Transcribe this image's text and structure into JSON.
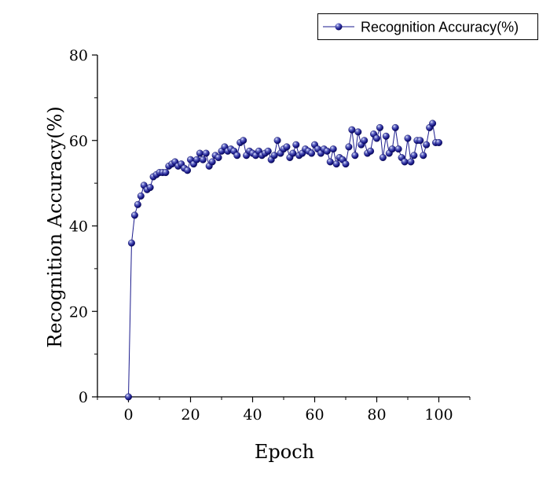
{
  "chart_data": {
    "type": "line",
    "xlabel": "Epoch",
    "ylabel": "Recognition Accuracy(%)",
    "xlim": [
      -10,
      110
    ],
    "ylim": [
      0,
      80
    ],
    "x_ticks": [
      "0",
      "20",
      "40",
      "60",
      "80",
      "100"
    ],
    "y_ticks": [
      "0",
      "20",
      "40",
      "60",
      "80"
    ],
    "legend_position": "top-right",
    "grid": false,
    "series": [
      {
        "name": "Recognition Accuracy(%)",
        "color": "#1a1a8c",
        "marker": "sphere",
        "x": [
          0,
          1,
          2,
          3,
          4,
          5,
          6,
          7,
          8,
          9,
          10,
          11,
          12,
          13,
          14,
          15,
          16,
          17,
          18,
          19,
          20,
          21,
          22,
          23,
          24,
          25,
          26,
          27,
          28,
          29,
          30,
          31,
          32,
          33,
          34,
          35,
          36,
          37,
          38,
          39,
          40,
          41,
          42,
          43,
          44,
          45,
          46,
          47,
          48,
          49,
          50,
          51,
          52,
          53,
          54,
          55,
          56,
          57,
          58,
          59,
          60,
          61,
          62,
          63,
          64,
          65,
          66,
          67,
          68,
          69,
          70,
          71,
          72,
          73,
          74,
          75,
          76,
          77,
          78,
          79,
          80,
          81,
          82,
          83,
          84,
          85,
          86,
          87,
          88,
          89,
          90,
          91,
          92,
          93,
          94,
          95,
          96,
          97,
          98,
          99,
          100
        ],
        "y": [
          0,
          36,
          42.5,
          45,
          47,
          49.5,
          48.5,
          49,
          51.5,
          52,
          52.5,
          52.5,
          52.5,
          54,
          54.5,
          55,
          54,
          54.5,
          53.5,
          53,
          55.5,
          54.5,
          55.5,
          57,
          55.5,
          57,
          54,
          55,
          56.5,
          56,
          57.5,
          58.5,
          57.5,
          58,
          57.5,
          56.5,
          59.5,
          60,
          56.5,
          57.5,
          57,
          56.5,
          57.5,
          56.5,
          57,
          57.5,
          55.5,
          56.5,
          60,
          57,
          58,
          58.5,
          56,
          57,
          59,
          56.5,
          57,
          58,
          57.5,
          57,
          59,
          58,
          57,
          58,
          57.5,
          55,
          58,
          54.5,
          56,
          55.5,
          54.5,
          58.5,
          62.5,
          56.5,
          62,
          59,
          60,
          57,
          57.5,
          61.5,
          60.5,
          63,
          56,
          61,
          57,
          58,
          63,
          58,
          56,
          55,
          60.5,
          55,
          56.5,
          60,
          60,
          56.5,
          59,
          63,
          64,
          59.5,
          59.5
        ]
      }
    ]
  }
}
